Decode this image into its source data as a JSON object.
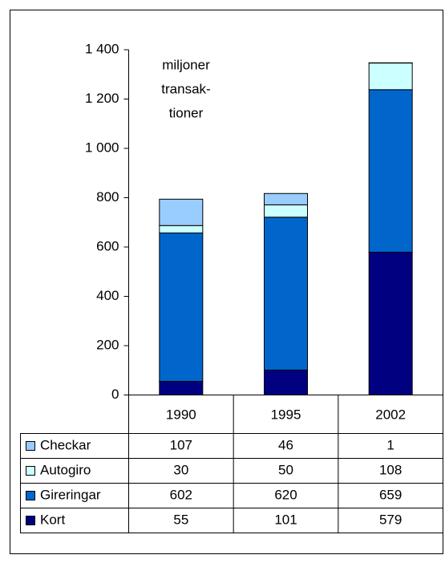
{
  "chart_data": {
    "type": "stacked_bar",
    "annotation": [
      "miljoner",
      "transak-",
      "tioner"
    ],
    "categories": [
      "1990",
      "1995",
      "2002"
    ],
    "series": [
      {
        "name": "Kort",
        "color": "#000080",
        "values": [
          55,
          101,
          579
        ]
      },
      {
        "name": "Gireringar",
        "color": "#0066cc",
        "values": [
          602,
          620,
          659
        ]
      },
      {
        "name": "Autogiro",
        "color": "#ccffff",
        "values": [
          30,
          50,
          108
        ]
      },
      {
        "name": "Checkar",
        "color": "#99ccff",
        "values": [
          107,
          46,
          1
        ]
      }
    ],
    "ylim": [
      0,
      1400
    ],
    "yticks": [
      0,
      200,
      400,
      600,
      800,
      {
        "value": 1000,
        "label": "1 000"
      },
      {
        "value": 1200,
        "label": "1 200"
      },
      {
        "value": 1400,
        "label": "1 400"
      }
    ]
  }
}
